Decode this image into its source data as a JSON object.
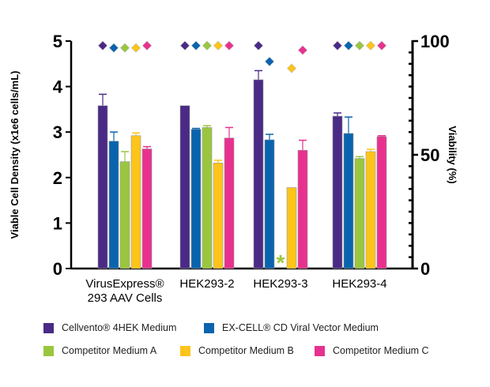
{
  "chart_data": {
    "type": "bar",
    "ylabel": "Viable  Cell Density  (x1e6 cells/mL)",
    "y2label": "Viability  (%)",
    "ylim": [
      0,
      5
    ],
    "y2lim": [
      0,
      100
    ],
    "yticks": [
      "0",
      "1",
      "2",
      "3",
      "4",
      "5"
    ],
    "y2ticks": [
      "0",
      "50",
      "100"
    ],
    "categories": [
      "VirusExpress®\n293 AAV Cells",
      "HEK293-2",
      "HEK293-3",
      "HEK293-4"
    ],
    "category_lines": [
      [
        "VirusExpress®",
        "293 AAV Cells"
      ],
      [
        "HEK293-2"
      ],
      [
        "HEK293-3"
      ],
      [
        "HEK293-4"
      ]
    ],
    "legend_position": "bottom",
    "series": [
      {
        "name": "Cellvento® 4HEK Medium",
        "color": "#4a2a86",
        "values": [
          3.58,
          3.58,
          4.15,
          3.35
        ],
        "error_top": [
          3.83,
          3.58,
          4.35,
          3.42
        ],
        "viability": [
          98,
          98,
          98,
          98
        ]
      },
      {
        "name": "EX-CELL® CD Viral Vector Medium",
        "color": "#0a64ad",
        "values": [
          2.8,
          3.06,
          2.83,
          2.97
        ],
        "error_top": [
          3.0,
          3.08,
          2.95,
          3.33
        ],
        "viability": [
          97,
          98,
          91,
          98
        ]
      },
      {
        "name": "Competitor Medium A",
        "color": "#9ac63f",
        "values": [
          2.35,
          3.1,
          0,
          2.42
        ],
        "error_top": [
          2.57,
          3.14,
          null,
          2.46
        ],
        "viability": [
          97,
          98,
          null,
          98
        ]
      },
      {
        "name": "Competitor Medium B",
        "color": "#fdc41b",
        "values": [
          2.92,
          2.32,
          1.78,
          2.57
        ],
        "error_top": [
          2.98,
          2.38,
          1.78,
          2.62
        ],
        "viability": [
          97,
          98,
          88,
          98
        ]
      },
      {
        "name": "Competitor Medium C",
        "color": "#e8318f",
        "values": [
          2.63,
          2.87,
          2.6,
          2.9
        ],
        "error_top": [
          2.68,
          3.1,
          2.82,
          2.92
        ],
        "viability": [
          98,
          98,
          96,
          98
        ]
      }
    ],
    "annotations": [
      {
        "category": "HEK293-3",
        "series": "Competitor Medium A",
        "text": "*"
      }
    ]
  }
}
